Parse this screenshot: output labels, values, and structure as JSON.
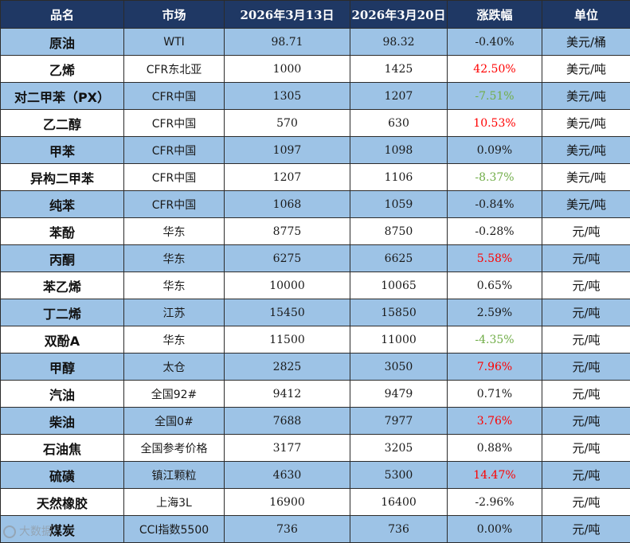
{
  "table": {
    "headers": {
      "product": "品名",
      "market": "市场",
      "date1": "2026年3月13日",
      "date2": "2026年3月20日",
      "change": "涨跌幅",
      "unit": "单位"
    },
    "rows": [
      {
        "product": "原油",
        "market": "WTI",
        "date1": "98.71",
        "date2": "98.32",
        "change": "-0.40%",
        "unit": "美元/桶",
        "change_color": "#1a1a1a"
      },
      {
        "product": "乙烯",
        "market": "CFR东北亚",
        "date1": "1000",
        "date2": "1425",
        "change": "42.50%",
        "unit": "美元/吨",
        "change_color": "#ff0000"
      },
      {
        "product": "对二甲苯（PX）",
        "market": "CFR中国",
        "date1": "1305",
        "date2": "1207",
        "change": "-7.51%",
        "unit": "美元/吨",
        "change_color": "#70ad47"
      },
      {
        "product": "乙二醇",
        "market": "CFR中国",
        "date1": "570",
        "date2": "630",
        "change": "10.53%",
        "unit": "美元/吨",
        "change_color": "#ff0000"
      },
      {
        "product": "甲苯",
        "market": "CFR中国",
        "date1": "1097",
        "date2": "1098",
        "change": "0.09%",
        "unit": "美元/吨",
        "change_color": "#1a1a1a"
      },
      {
        "product": "异构二甲苯",
        "market": "CFR中国",
        "date1": "1207",
        "date2": "1106",
        "change": "-8.37%",
        "unit": "美元/吨",
        "change_color": "#70ad47"
      },
      {
        "product": "纯苯",
        "market": "CFR中国",
        "date1": "1068",
        "date2": "1059",
        "change": "-0.84%",
        "unit": "美元/吨",
        "change_color": "#1a1a1a"
      },
      {
        "product": "苯酚",
        "market": "华东",
        "date1": "8775",
        "date2": "8750",
        "change": "-0.28%",
        "unit": "元/吨",
        "change_color": "#1a1a1a"
      },
      {
        "product": "丙酮",
        "market": "华东",
        "date1": "6275",
        "date2": "6625",
        "change": "5.58%",
        "unit": "元/吨",
        "change_color": "#ff0000"
      },
      {
        "product": "苯乙烯",
        "market": "华东",
        "date1": "10000",
        "date2": "10065",
        "change": "0.65%",
        "unit": "元/吨",
        "change_color": "#1a1a1a"
      },
      {
        "product": "丁二烯",
        "market": "江苏",
        "date1": "15450",
        "date2": "15850",
        "change": "2.59%",
        "unit": "元/吨",
        "change_color": "#1a1a1a"
      },
      {
        "product": "双酚A",
        "market": "华东",
        "date1": "11500",
        "date2": "11000",
        "change": "-4.35%",
        "unit": "元/吨",
        "change_color": "#70ad47"
      },
      {
        "product": "甲醇",
        "market": "太仓",
        "date1": "2825",
        "date2": "3050",
        "change": "7.96%",
        "unit": "元/吨",
        "change_color": "#ff0000"
      },
      {
        "product": "汽油",
        "market": "全国92#",
        "date1": "9412",
        "date2": "9479",
        "change": "0.71%",
        "unit": "元/吨",
        "change_color": "#1a1a1a"
      },
      {
        "product": "柴油",
        "market": "全国0#",
        "date1": "7688",
        "date2": "7977",
        "change": "3.76%",
        "unit": "元/吨",
        "change_color": "#ff0000"
      },
      {
        "product": "石油焦",
        "market": "全国参考价格",
        "date1": "3177",
        "date2": "3205",
        "change": "0.88%",
        "unit": "元/吨",
        "change_color": "#1a1a1a"
      },
      {
        "product": "硫磺",
        "market": "镇江颗粒",
        "date1": "4630",
        "date2": "5300",
        "change": "14.47%",
        "unit": "元/吨",
        "change_color": "#ff0000"
      },
      {
        "product": "天然橡胶",
        "market": "上海3L",
        "date1": "16900",
        "date2": "16400",
        "change": "-2.96%",
        "unit": "元/吨",
        "change_color": "#1a1a1a"
      },
      {
        "product": "煤炭",
        "market": "CCI指数5500",
        "date1": "736",
        "date2": "736",
        "change": "0.00%",
        "unit": "元/吨",
        "change_color": "#1a1a1a"
      }
    ]
  },
  "colors": {
    "header_bg": "#1f3864",
    "shade_row_bg": "#9dc3e6",
    "up": "#ff0000",
    "down_large": "#70ad47"
  },
  "watermark": {
    "text": "大数据",
    "icon": "watermark-logo-icon"
  }
}
